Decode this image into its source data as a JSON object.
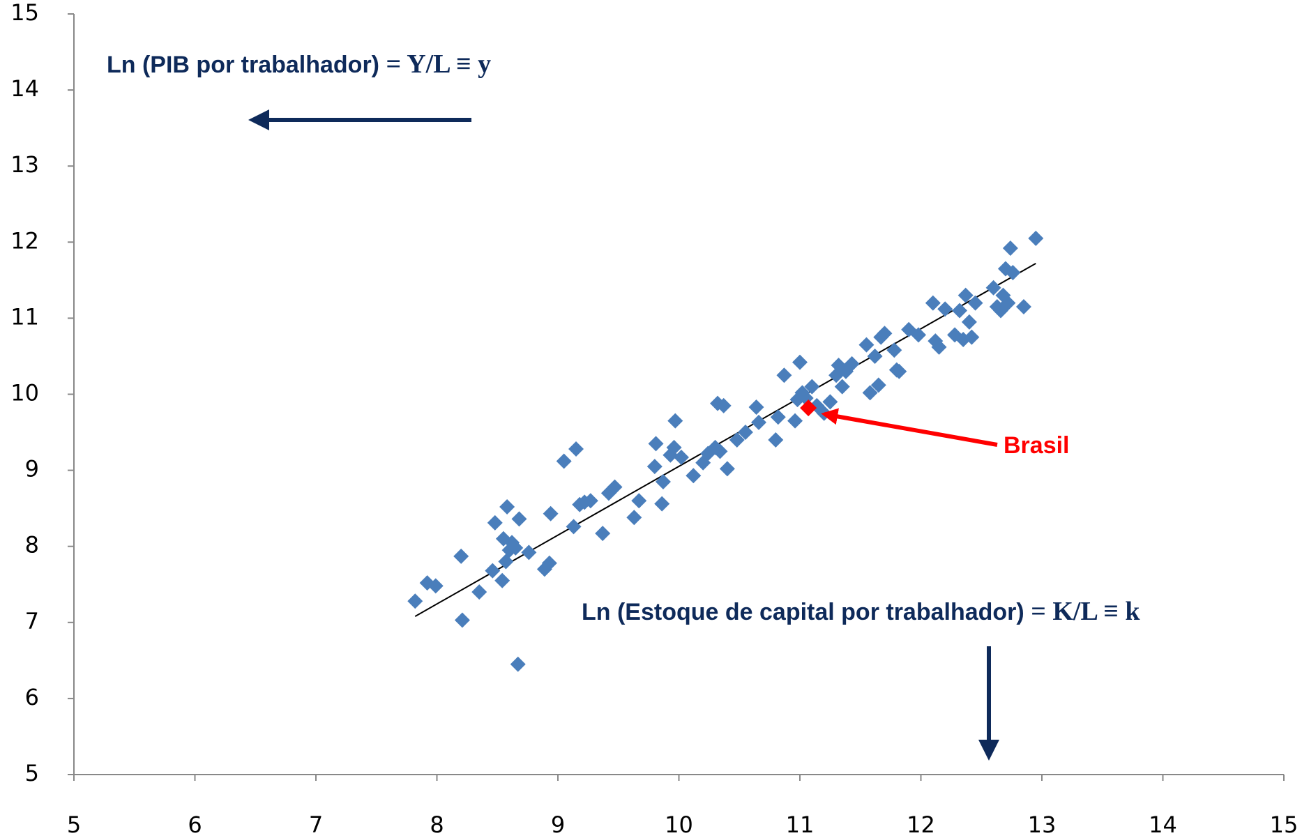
{
  "chart_data": {
    "type": "scatter",
    "xlim": [
      5,
      15
    ],
    "xticks": [
      5,
      6,
      7,
      8,
      9,
      10,
      11,
      12,
      13,
      14,
      15
    ],
    "ylim": [
      5,
      15
    ],
    "yticks": [
      5,
      6,
      7,
      8,
      9,
      10,
      11,
      12,
      13,
      14,
      15
    ],
    "annotations": {
      "y_label": {
        "text": "Ln (PIB por trabalhador) ",
        "formula": "= Y/L ≡ y"
      },
      "x_label": {
        "text": "Ln (Estoque de capital por trabalhador) ",
        "formula": "= K/L ≡ k"
      },
      "highlight": "Brasil"
    },
    "series": [
      {
        "color": "#4a7ebb",
        "x": [
          7.82,
          7.92,
          7.99,
          8.2,
          8.21,
          8.35,
          8.46,
          8.48,
          8.54,
          8.55,
          8.57,
          8.58,
          8.6,
          8.62,
          8.65,
          8.67,
          8.68,
          8.76,
          8.89,
          8.93,
          8.94,
          9.05,
          9.13,
          9.15,
          9.18,
          9.22,
          9.27,
          9.37,
          9.42,
          9.47,
          9.63,
          9.67,
          9.8,
          9.81,
          9.86,
          9.87,
          9.93,
          9.96,
          9.97,
          10.02,
          10.12,
          10.2,
          10.24,
          10.3,
          10.32,
          10.34,
          10.37,
          10.4,
          10.48,
          10.55,
          10.64,
          10.66,
          10.8,
          10.82,
          10.87,
          10.96,
          10.98,
          11.0,
          11.02,
          11.05,
          11.1,
          11.14,
          11.2,
          11.25,
          11.3,
          11.32,
          11.35,
          11.38,
          11.43,
          11.55,
          11.58,
          11.62,
          11.65,
          11.67,
          11.7,
          11.78,
          11.8,
          11.82,
          11.9,
          11.98,
          12.1,
          12.12,
          12.15,
          12.2,
          12.28,
          12.32,
          12.35,
          12.37,
          12.4,
          12.42,
          12.45,
          12.6,
          12.63,
          12.66,
          12.68,
          12.7,
          12.72,
          12.74,
          12.76,
          12.85,
          12.95
        ],
        "values": [
          7.28,
          7.52,
          7.48,
          7.87,
          7.03,
          7.4,
          7.68,
          8.31,
          7.55,
          8.1,
          7.8,
          8.52,
          7.95,
          8.05,
          7.98,
          6.45,
          8.36,
          7.92,
          7.7,
          7.78,
          8.43,
          9.12,
          8.26,
          9.28,
          8.55,
          8.58,
          8.6,
          8.17,
          8.7,
          8.78,
          8.38,
          8.6,
          9.05,
          9.35,
          8.56,
          8.85,
          9.2,
          9.3,
          9.65,
          9.17,
          8.93,
          9.1,
          9.22,
          9.3,
          9.88,
          9.25,
          9.85,
          9.02,
          9.4,
          9.5,
          9.83,
          9.63,
          9.4,
          9.7,
          10.25,
          9.65,
          9.93,
          10.42,
          10.02,
          9.95,
          10.1,
          9.85,
          9.75,
          9.9,
          10.25,
          10.38,
          10.1,
          10.3,
          10.4,
          10.65,
          10.02,
          10.5,
          10.12,
          10.75,
          10.8,
          10.58,
          10.32,
          10.3,
          10.85,
          10.78,
          11.2,
          10.7,
          10.62,
          11.12,
          10.78,
          11.1,
          10.72,
          11.3,
          10.95,
          10.75,
          11.2,
          11.4,
          11.15,
          11.1,
          11.3,
          11.65,
          11.2,
          11.92,
          11.6,
          11.15,
          12.05
        ]
      },
      {
        "color": "#ff0000",
        "x": [
          11.07
        ],
        "values": [
          9.82
        ]
      }
    ],
    "trendline": {
      "color": "#000000",
      "x": [
        7.82,
        12.95
      ],
      "values": [
        7.08,
        11.72
      ]
    }
  }
}
